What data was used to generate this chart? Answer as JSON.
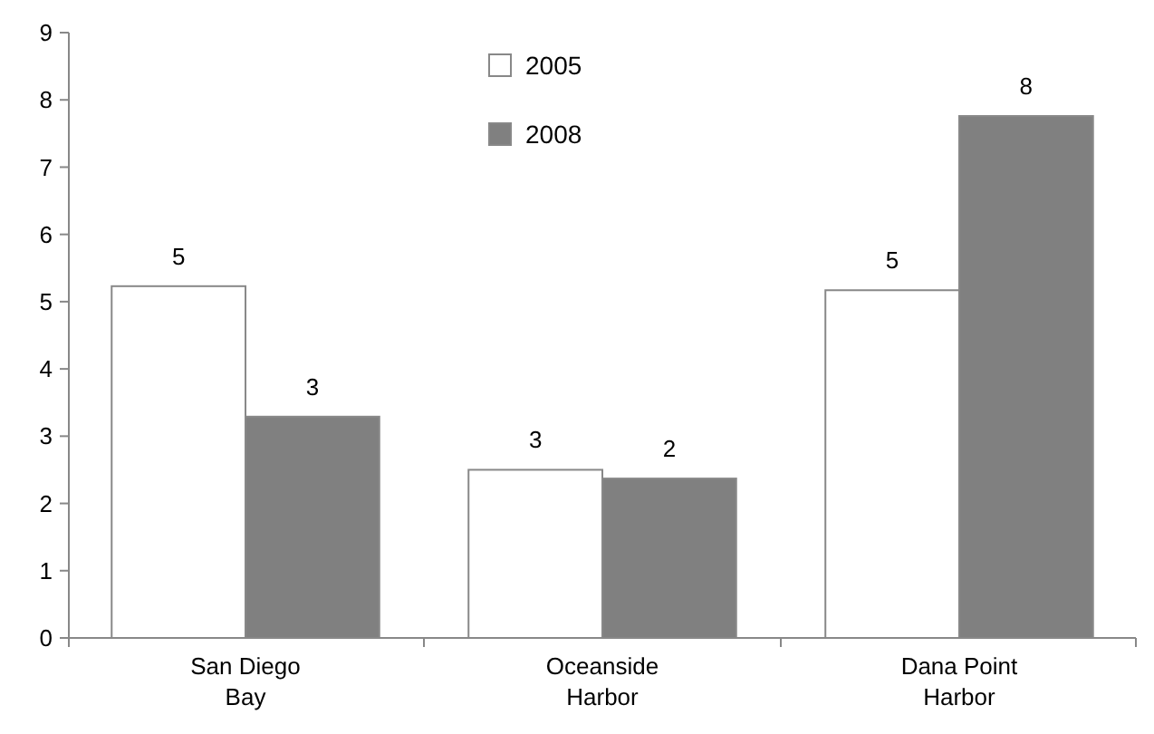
{
  "chart_data": {
    "type": "bar",
    "categories": [
      "San Diego Bay",
      "Oceanside Harbor",
      "Dana Point Harbor"
    ],
    "series": [
      {
        "name": "2005",
        "color": "#ffffff",
        "values": [
          5.23,
          2.5,
          5.17
        ],
        "value_labels": [
          "5",
          "3",
          "5"
        ]
      },
      {
        "name": "2008",
        "color": "#808080",
        "values": [
          3.29,
          2.37,
          7.76
        ],
        "value_labels": [
          "3",
          "2",
          "8"
        ]
      }
    ],
    "ylim": [
      0,
      9
    ],
    "yticks": [
      0,
      1,
      2,
      3,
      4,
      5,
      6,
      7,
      8,
      9
    ],
    "grid": false,
    "legend": "top"
  }
}
